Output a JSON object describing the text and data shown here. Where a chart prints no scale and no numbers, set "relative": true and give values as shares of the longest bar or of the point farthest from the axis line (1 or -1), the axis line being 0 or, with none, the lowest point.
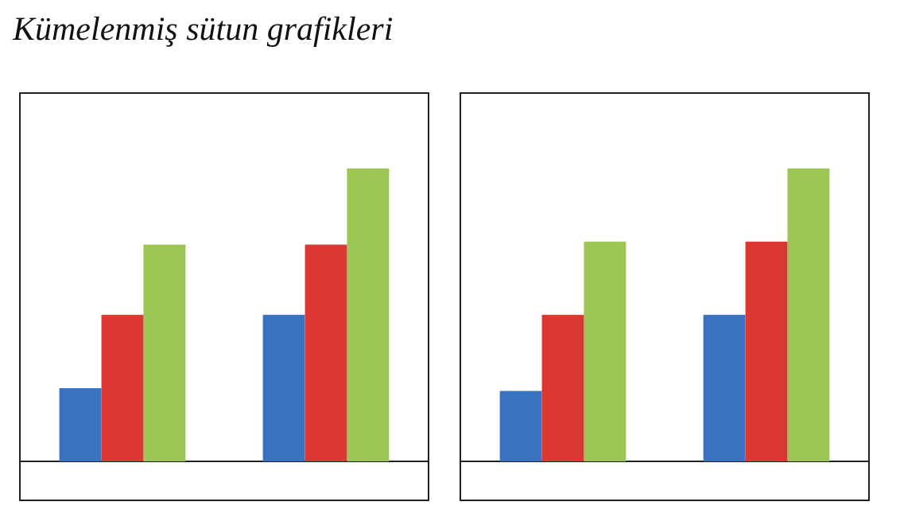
{
  "chart_data": [
    {
      "type": "bar",
      "title": "Kümelenmiş sütun grafikleri",
      "relative": true,
      "categories": [
        null,
        null
      ],
      "series": [
        {
          "color": "#3a72bf",
          "values": [
            0.25,
            0.5
          ]
        },
        {
          "color": "#dc3832",
          "values": [
            0.5,
            0.74
          ]
        },
        {
          "color": "#9bc554",
          "values": [
            0.74,
            1
          ]
        }
      ]
    },
    {
      "type": "bar",
      "relative": true,
      "categories": [
        null,
        null
      ],
      "series": [
        {
          "color": "#3a72bf",
          "values": [
            0.24,
            0.5
          ]
        },
        {
          "color": "#dc3832",
          "values": [
            0.5,
            0.75
          ]
        },
        {
          "color": "#9bc554",
          "values": [
            0.75,
            1
          ]
        }
      ]
    }
  ]
}
